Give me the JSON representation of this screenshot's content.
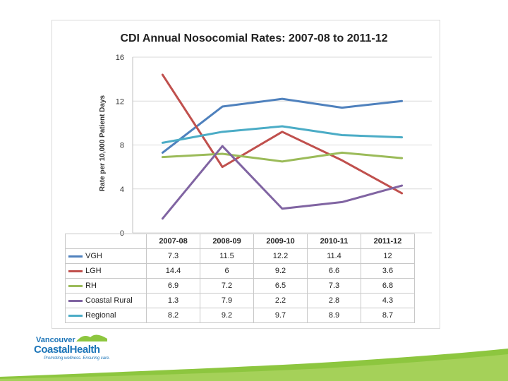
{
  "chart_data": {
    "type": "line",
    "title": "CDI Annual Nosocomial Rates: 2007-08 to 2011-12",
    "ylabel": "Rate per 10,000 Patient Days",
    "xlabel": "",
    "ylim": [
      0,
      16
    ],
    "yticks": [
      0,
      4,
      8,
      12,
      16
    ],
    "categories": [
      "2007-08",
      "2008-09",
      "2009-10",
      "2010-11",
      "2011-12"
    ],
    "series": [
      {
        "name": "VGH",
        "color": "#4f81bd",
        "values": [
          7.3,
          11.5,
          12.2,
          11.4,
          12
        ]
      },
      {
        "name": "LGH",
        "color": "#c0504d",
        "values": [
          14.4,
          6,
          9.2,
          6.6,
          3.6
        ]
      },
      {
        "name": "RH",
        "color": "#9bbb59",
        "values": [
          6.9,
          7.2,
          6.5,
          7.3,
          6.8
        ]
      },
      {
        "name": "Coastal Rural",
        "color": "#8064a2",
        "values": [
          1.3,
          7.9,
          2.2,
          2.8,
          4.3
        ]
      },
      {
        "name": "Regional",
        "color": "#4bacc6",
        "values": [
          8.2,
          9.2,
          9.7,
          8.9,
          8.7
        ]
      }
    ],
    "data_table": [
      [
        "7.3",
        "11.5",
        "12.2",
        "11.4",
        "12"
      ],
      [
        "14.4",
        "6",
        "9.2",
        "6.6",
        "3.6"
      ],
      [
        "6.9",
        "7.2",
        "6.5",
        "7.3",
        "6.8"
      ],
      [
        "1.3",
        "7.9",
        "2.2",
        "2.8",
        "4.3"
      ],
      [
        "8.2",
        "9.2",
        "9.7",
        "8.9",
        "8.7"
      ]
    ]
  },
  "logo": {
    "line1": "Vancouver",
    "line2": "CoastalHealth",
    "tagline": "Promoting wellness. Ensuring care.",
    "brand_color": "#1c75b8",
    "accent_color": "#8dc63f"
  }
}
